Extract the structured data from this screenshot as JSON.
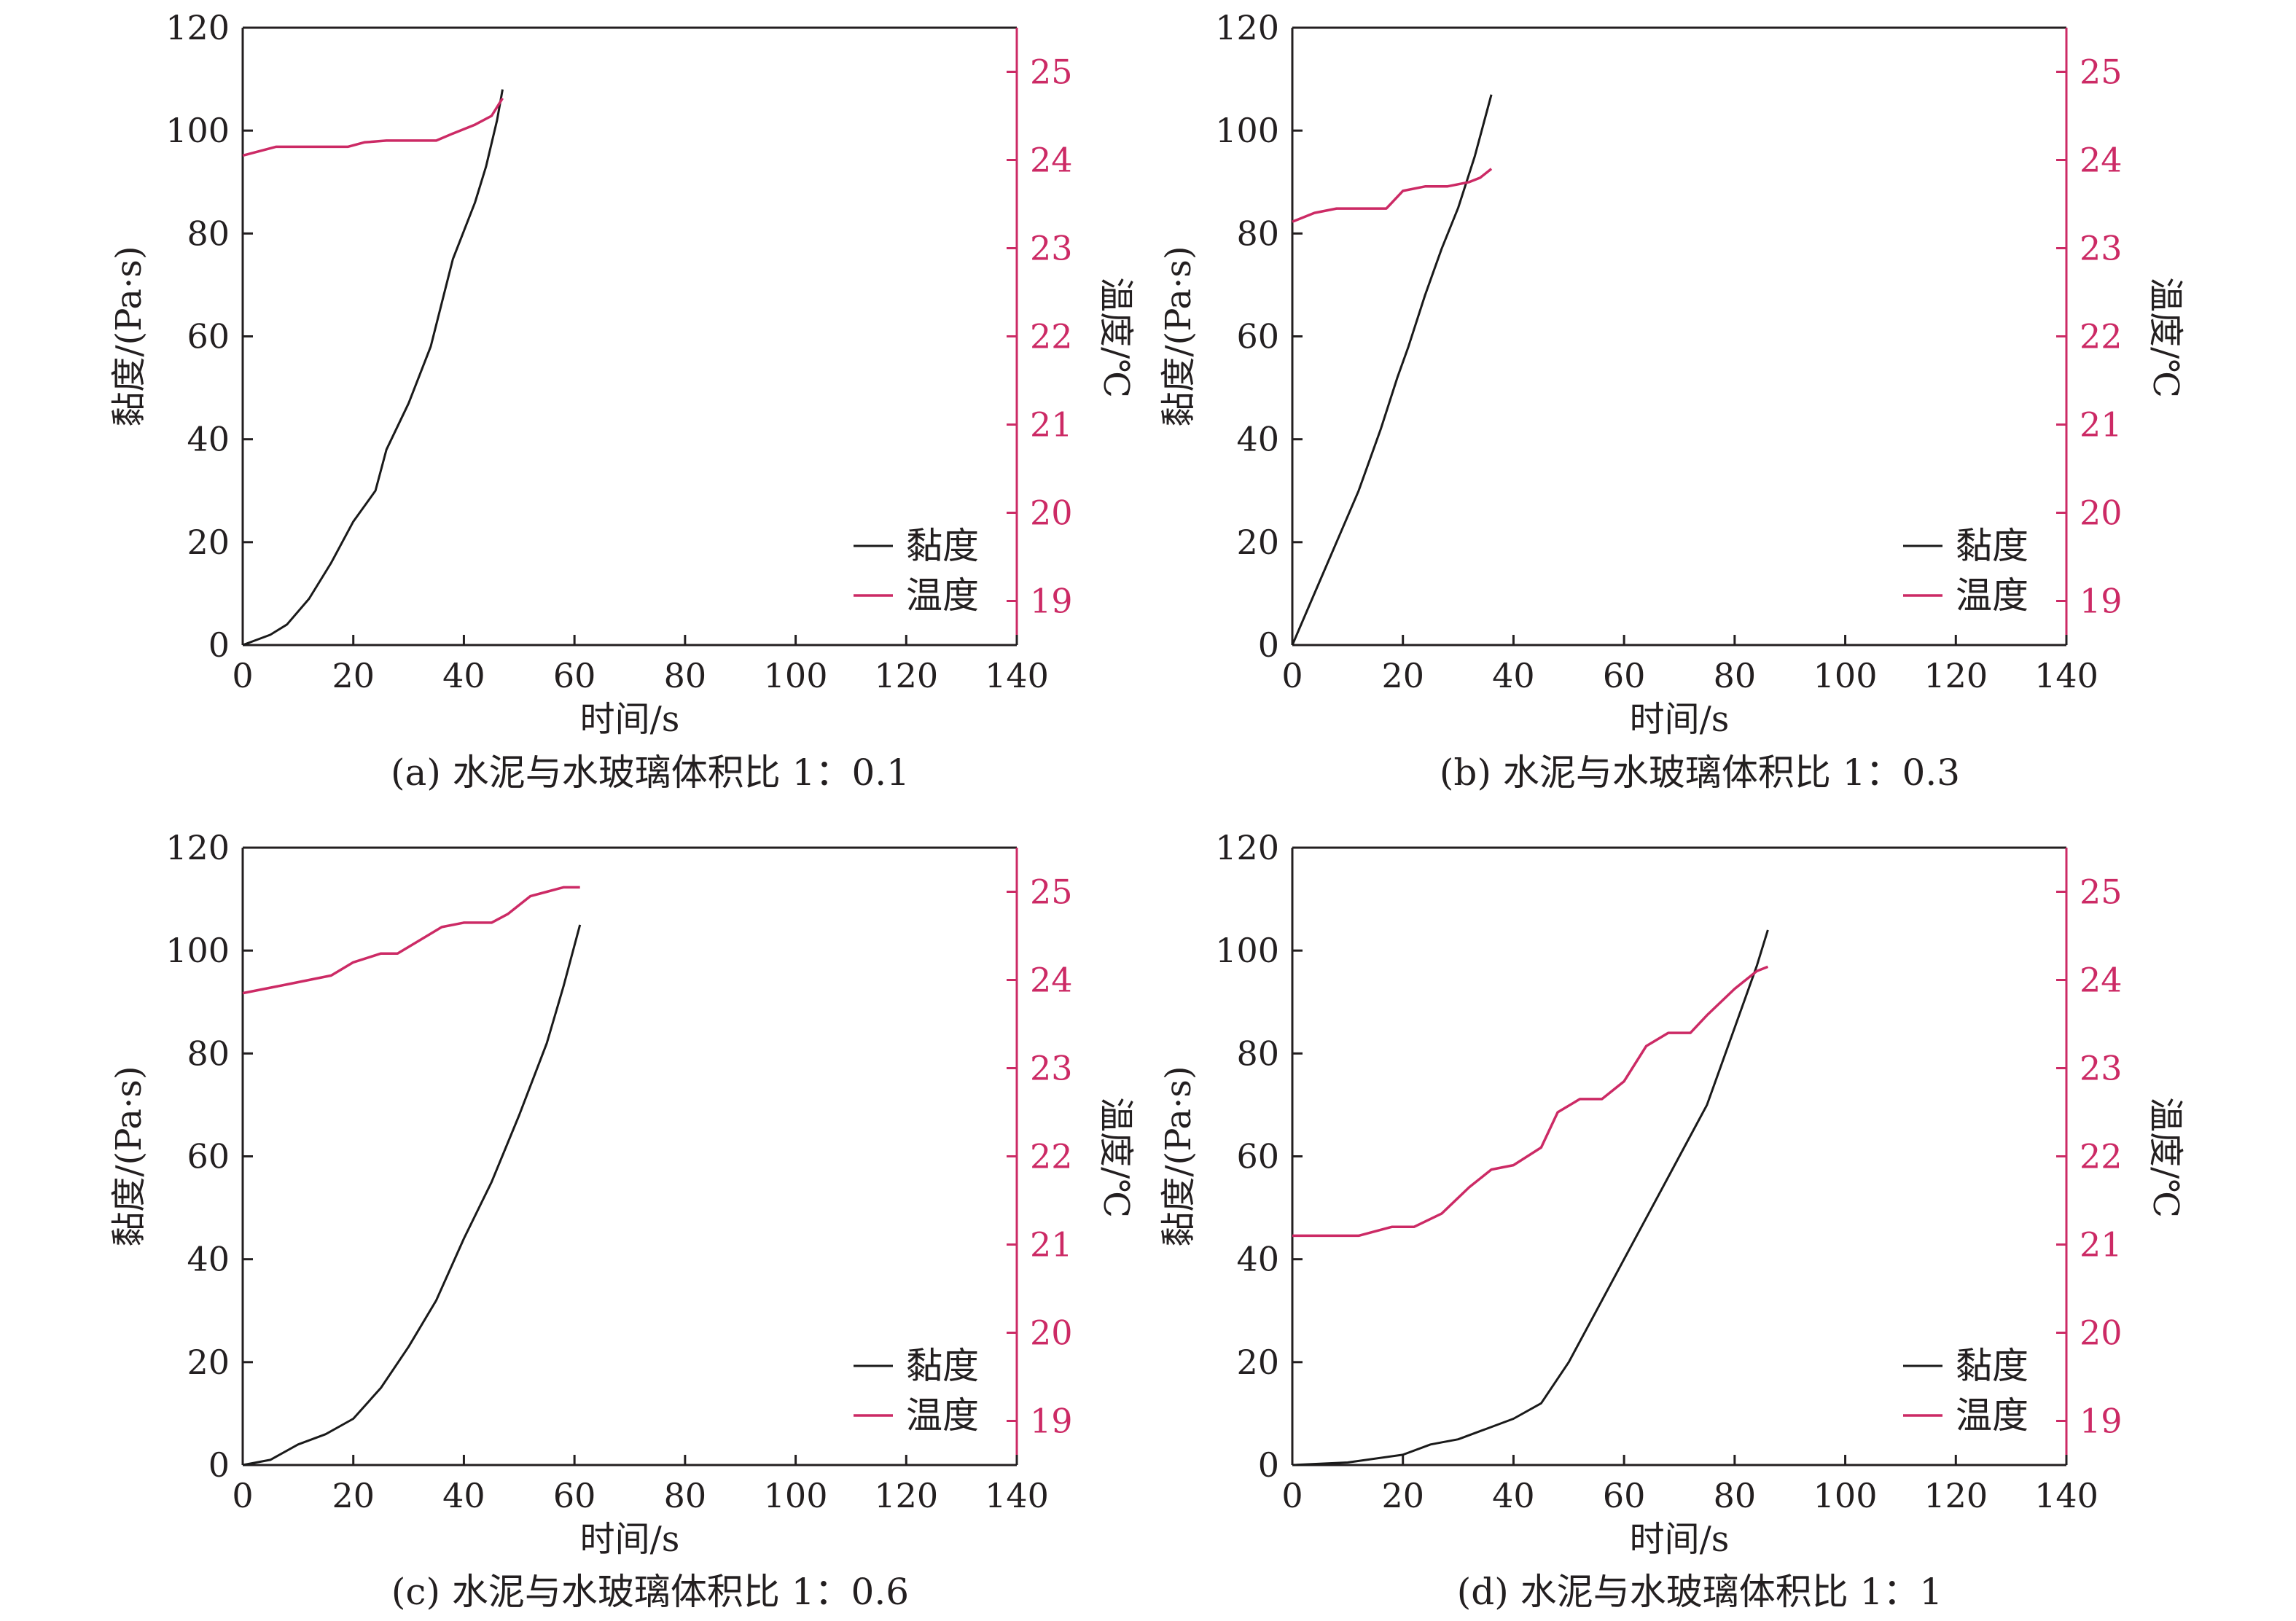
{
  "legend": {
    "viscosity": "黏度",
    "temperature": "温度"
  },
  "colors": {
    "viscosity": "#1a1a1a",
    "temperature": "#cc2a65",
    "axis": "#231f20"
  },
  "chart_data": [
    {
      "type": "line",
      "caption": "(a) 水泥与水玻璃体积比 1：0.1",
      "xlabel": "时间/s",
      "ylabel": "黏度/(Pa·s)",
      "y2label": "温度/℃",
      "xlim": [
        0,
        140
      ],
      "xticks": [
        0,
        20,
        40,
        60,
        80,
        100,
        120,
        140
      ],
      "ylim": [
        0,
        120
      ],
      "yticks": [
        0,
        20,
        40,
        60,
        80,
        100,
        120
      ],
      "y2lim": [
        18.5,
        25.5
      ],
      "y2ticks": [
        19,
        20,
        21,
        22,
        23,
        24,
        25
      ],
      "legend_position": "bottom-right",
      "series": [
        {
          "name": "黏度",
          "axis": "left",
          "x": [
            0,
            5,
            8,
            12,
            16,
            20,
            24,
            26,
            30,
            34,
            38,
            42,
            44,
            46,
            47
          ],
          "y": [
            0,
            2,
            4,
            9,
            16,
            24,
            30,
            38,
            47,
            58,
            75,
            86,
            93,
            102,
            108
          ]
        },
        {
          "name": "温度",
          "axis": "right",
          "x": [
            0,
            3,
            6,
            10,
            16,
            19,
            22,
            26,
            30,
            35,
            38,
            42,
            45,
            47
          ],
          "y": [
            24.05,
            24.1,
            24.15,
            24.15,
            24.15,
            24.15,
            24.2,
            24.22,
            24.22,
            24.22,
            24.3,
            24.4,
            24.5,
            24.7
          ]
        }
      ]
    },
    {
      "type": "line",
      "caption": "(b) 水泥与水玻璃体积比 1：0.3",
      "xlabel": "时间/s",
      "ylabel": "黏度/(Pa·s)",
      "y2label": "温度/℃",
      "xlim": [
        0,
        140
      ],
      "xticks": [
        0,
        20,
        40,
        60,
        80,
        100,
        120,
        140
      ],
      "ylim": [
        0,
        120
      ],
      "yticks": [
        0,
        20,
        40,
        60,
        80,
        100,
        120
      ],
      "y2lim": [
        18.5,
        25.5
      ],
      "y2ticks": [
        19,
        20,
        21,
        22,
        23,
        24,
        25
      ],
      "legend_position": "bottom-right",
      "series": [
        {
          "name": "黏度",
          "axis": "left",
          "x": [
            0,
            4,
            8,
            12,
            16,
            19,
            21,
            24,
            27,
            30,
            33,
            36
          ],
          "y": [
            0,
            10,
            20,
            30,
            42,
            52,
            58,
            68,
            77,
            85,
            95,
            107
          ]
        },
        {
          "name": "温度",
          "axis": "right",
          "x": [
            0,
            4,
            8,
            12,
            17,
            20,
            24,
            28,
            32,
            34,
            36
          ],
          "y": [
            23.3,
            23.4,
            23.45,
            23.45,
            23.45,
            23.65,
            23.7,
            23.7,
            23.75,
            23.8,
            23.9
          ]
        }
      ]
    },
    {
      "type": "line",
      "caption": "(c) 水泥与水玻璃体积比 1：0.6",
      "xlabel": "时间/s",
      "ylabel": "黏度/(Pa·s)",
      "y2label": "温度/℃",
      "xlim": [
        0,
        140
      ],
      "xticks": [
        0,
        20,
        40,
        60,
        80,
        100,
        120,
        140
      ],
      "ylim": [
        0,
        120
      ],
      "yticks": [
        0,
        20,
        40,
        60,
        80,
        100,
        120
      ],
      "y2lim": [
        18.5,
        25.5
      ],
      "y2ticks": [
        19,
        20,
        21,
        22,
        23,
        24,
        25
      ],
      "legend_position": "bottom-right",
      "series": [
        {
          "name": "黏度",
          "axis": "left",
          "x": [
            0,
            5,
            10,
            15,
            20,
            25,
            30,
            35,
            40,
            45,
            50,
            55,
            58,
            61
          ],
          "y": [
            0,
            1,
            4,
            6,
            9,
            15,
            23,
            32,
            44,
            55,
            68,
            82,
            93,
            105
          ]
        },
        {
          "name": "温度",
          "axis": "right",
          "x": [
            0,
            4,
            8,
            12,
            16,
            20,
            25,
            28,
            32,
            36,
            40,
            45,
            48,
            52,
            55,
            58,
            61
          ],
          "y": [
            23.85,
            23.9,
            23.95,
            24.0,
            24.05,
            24.2,
            24.3,
            24.3,
            24.45,
            24.6,
            24.65,
            24.65,
            24.75,
            24.95,
            25.0,
            25.05,
            25.05
          ]
        }
      ]
    },
    {
      "type": "line",
      "caption": "(d) 水泥与水玻璃体积比 1：1",
      "xlabel": "时间/s",
      "ylabel": "黏度/(Pa·s)",
      "y2label": "温度/℃",
      "xlim": [
        0,
        140
      ],
      "xticks": [
        0,
        20,
        40,
        60,
        80,
        100,
        120,
        140
      ],
      "ylim": [
        0,
        120
      ],
      "yticks": [
        0,
        20,
        40,
        60,
        80,
        100,
        120
      ],
      "y2lim": [
        18.5,
        25.5
      ],
      "y2ticks": [
        19,
        20,
        21,
        22,
        23,
        24,
        25
      ],
      "legend_position": "bottom-right",
      "series": [
        {
          "name": "黏度",
          "axis": "left",
          "x": [
            0,
            10,
            20,
            25,
            30,
            35,
            40,
            45,
            50,
            55,
            60,
            65,
            70,
            75,
            80,
            84,
            86
          ],
          "y": [
            0,
            0.5,
            2,
            4,
            5,
            7,
            9,
            12,
            20,
            30,
            40,
            50,
            60,
            70,
            85,
            97,
            104
          ]
        },
        {
          "name": "温度",
          "axis": "right",
          "x": [
            0,
            5,
            12,
            18,
            22,
            27,
            32,
            36,
            40,
            45,
            48,
            52,
            56,
            60,
            64,
            68,
            72,
            75,
            80,
            84,
            86
          ],
          "y": [
            21.1,
            21.1,
            21.1,
            21.2,
            21.2,
            21.35,
            21.65,
            21.85,
            21.9,
            22.1,
            22.5,
            22.65,
            22.65,
            22.85,
            23.25,
            23.4,
            23.4,
            23.6,
            23.9,
            24.1,
            24.15
          ]
        }
      ]
    }
  ]
}
